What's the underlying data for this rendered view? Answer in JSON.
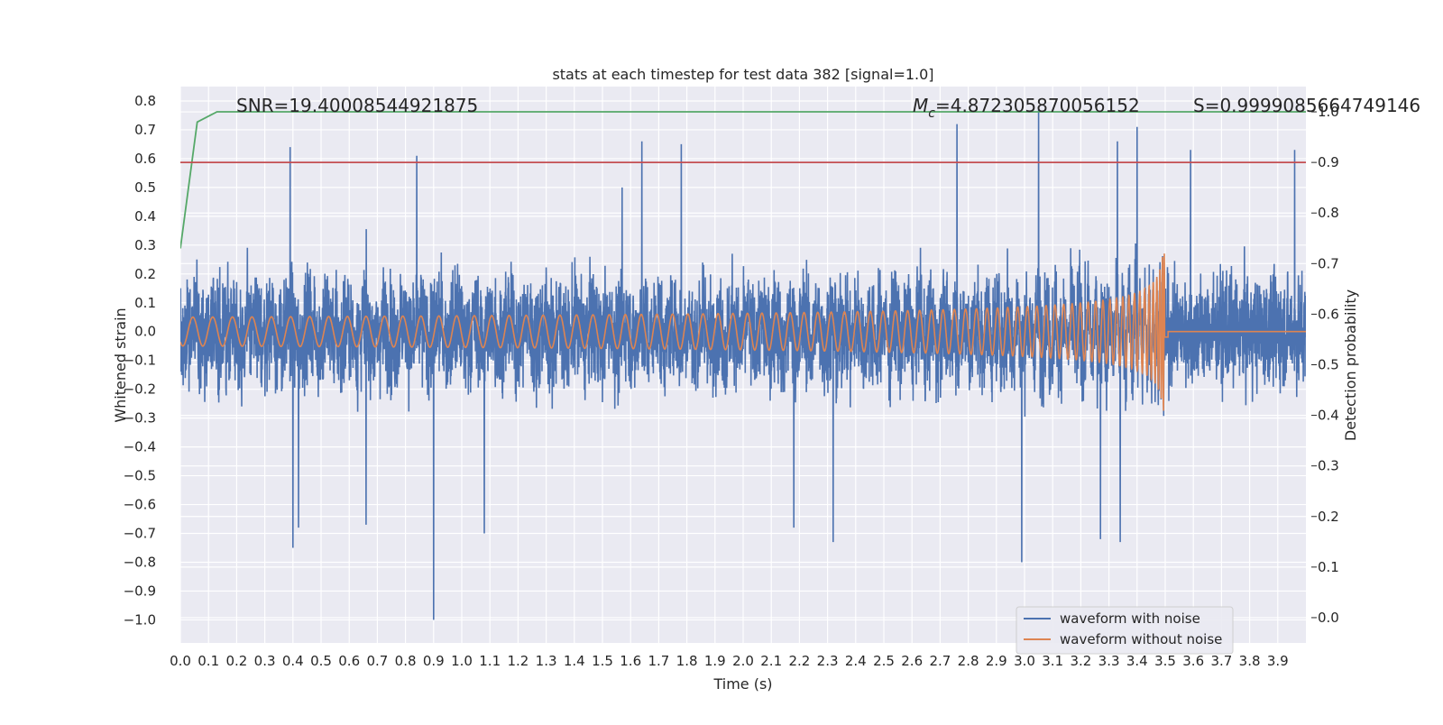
{
  "chart_data": {
    "type": "line",
    "title": "stats at each timestep for test data 382 [signal=1.0]",
    "xlabel": "Time (s)",
    "ylabel": "Whitened strain",
    "y2label": "Detection probability",
    "xlim": [
      0.0,
      4.0
    ],
    "ylim": [
      -1.08,
      0.85
    ],
    "y2lim": [
      -0.05,
      1.05
    ],
    "xticks": [
      "0.0",
      "0.1",
      "0.2",
      "0.3",
      "0.4",
      "0.5",
      "0.6",
      "0.7",
      "0.8",
      "0.9",
      "1.0",
      "1.1",
      "1.2",
      "1.3",
      "1.4",
      "1.5",
      "1.6",
      "1.7",
      "1.8",
      "1.9",
      "2.0",
      "2.1",
      "2.2",
      "2.3",
      "2.4",
      "2.5",
      "2.6",
      "2.7",
      "2.8",
      "2.9",
      "3.0",
      "3.1",
      "3.2",
      "3.3",
      "3.4",
      "3.5",
      "3.6",
      "3.7",
      "3.8",
      "3.9"
    ],
    "yticks": [
      "0.8",
      "0.7",
      "0.6",
      "0.5",
      "0.4",
      "0.3",
      "0.2",
      "0.1",
      "0.0",
      "−0.1",
      "−0.2",
      "−0.3",
      "−0.4",
      "−0.5",
      "−0.6",
      "−0.7",
      "−0.8",
      "−0.9",
      "−1.0"
    ],
    "y2ticks": [
      "1.0",
      "0.9",
      "0.8",
      "0.7",
      "0.6",
      "0.5",
      "0.4",
      "0.3",
      "0.2",
      "0.1",
      "0.0"
    ],
    "grid": true,
    "legend_position": "bottom-right",
    "annotations": {
      "snr": "SNR=19.40008544921875",
      "mc_symbol": "M",
      "mc_sub": "c",
      "mc_value": "=4.872305870056152",
      "s": "S=0.9999085664749146"
    },
    "series": [
      {
        "name": "waveform with noise",
        "color": "#4c72b0",
        "axis": "left",
        "description_values": "noise trace amplitude ~±0.35 typical, extremes from -1.0 to 0.77",
        "spikes": [
          [
            0.39,
            0.64
          ],
          [
            0.4,
            -0.75
          ],
          [
            0.42,
            -0.68
          ],
          [
            0.66,
            -0.67
          ],
          [
            0.84,
            0.61
          ],
          [
            0.9,
            -1.0
          ],
          [
            1.08,
            -0.7
          ],
          [
            1.57,
            0.5
          ],
          [
            1.64,
            0.66
          ],
          [
            1.78,
            0.65
          ],
          [
            2.18,
            -0.68
          ],
          [
            2.32,
            -0.73
          ],
          [
            2.76,
            0.72
          ],
          [
            2.99,
            -0.8
          ],
          [
            3.05,
            0.77
          ],
          [
            3.27,
            -0.72
          ],
          [
            3.33,
            0.66
          ],
          [
            3.34,
            -0.73
          ],
          [
            3.4,
            0.71
          ],
          [
            3.59,
            0.63
          ],
          [
            3.96,
            0.63
          ]
        ]
      },
      {
        "name": "waveform without noise",
        "color": "#dd8452",
        "axis": "left",
        "chirp_start_amplitude": 0.05,
        "chirp_peak_amplitude": 0.36,
        "merger_time": 3.5
      },
      {
        "name": "",
        "color": "#55a868",
        "axis": "right",
        "x": [
          0.0,
          0.06,
          0.13,
          0.2,
          4.0
        ],
        "values": [
          0.73,
          0.98,
          1.0,
          1.0,
          1.0
        ]
      },
      {
        "name": "",
        "color": "#c44e52",
        "axis": "right",
        "x": [
          0.0,
          4.0
        ],
        "values": [
          0.9,
          0.9
        ]
      }
    ]
  }
}
